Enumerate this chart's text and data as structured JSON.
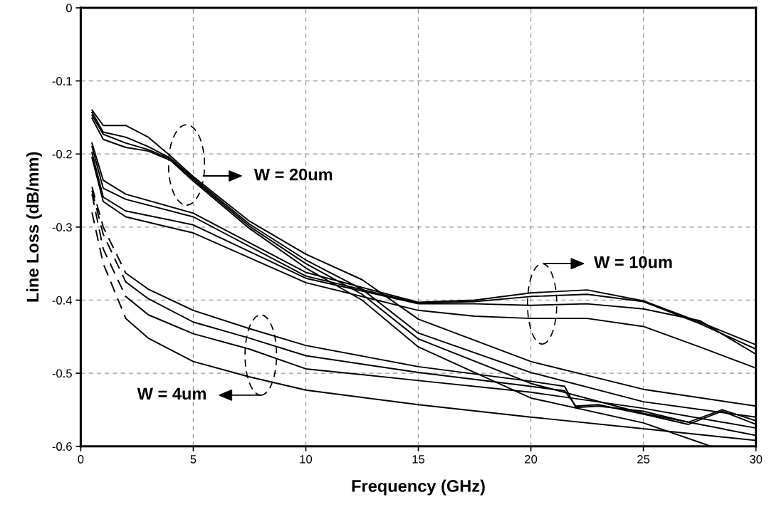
{
  "chart_data": {
    "type": "line",
    "xlabel": "Frequency (GHz)",
    "ylabel": "Line Loss (dB/mm)",
    "xlim": [
      0,
      30
    ],
    "ylim": [
      -0.6,
      0
    ],
    "xticks": [
      0,
      5,
      10,
      15,
      20,
      25,
      30
    ],
    "yticks": [
      0,
      -0.1,
      -0.2,
      -0.3,
      -0.4,
      -0.5,
      -0.6
    ],
    "grid": true,
    "marker": "none",
    "line_style": "solid",
    "annotations": [
      "W = 20um",
      "W = 10um",
      "W = 4um"
    ],
    "series": [
      {
        "color": "#000000",
        "x": [
          0.5,
          1,
          2,
          5,
          10,
          15,
          17.5,
          20,
          22.5,
          25,
          27.5,
          30
        ],
        "values": [
          -0.185,
          -0.236,
          -0.255,
          -0.281,
          -0.362,
          -0.403,
          -0.4,
          -0.39,
          -0.386,
          -0.401,
          -0.43,
          -0.461
        ]
      },
      {
        "color": "#000000",
        "x": [
          0.5,
          1,
          2,
          5,
          10,
          15,
          17.5,
          20,
          22.5,
          25,
          27.5,
          30
        ],
        "values": [
          -0.19,
          -0.247,
          -0.262,
          -0.286,
          -0.367,
          -0.404,
          -0.402,
          -0.395,
          -0.392,
          -0.402,
          -0.432,
          -0.467
        ]
      },
      {
        "color": "#000000",
        "x": [
          0.5,
          1,
          2,
          5,
          10,
          15,
          17.5,
          20,
          22.5,
          25,
          27.5,
          30
        ],
        "values": [
          -0.198,
          -0.259,
          -0.278,
          -0.297,
          -0.37,
          -0.405,
          -0.405,
          -0.407,
          -0.405,
          -0.412,
          -0.428,
          -0.474
        ]
      },
      {
        "color": "#000000",
        "x": [
          0.5,
          1,
          2,
          5,
          10,
          15,
          17.5,
          20,
          22.5,
          25,
          27.5,
          30
        ],
        "values": [
          -0.205,
          -0.265,
          -0.286,
          -0.308,
          -0.376,
          -0.414,
          -0.422,
          -0.425,
          -0.425,
          -0.436,
          -0.464,
          -0.493
        ]
      },
      {
        "color": "#000000",
        "x": [
          0.5,
          1,
          2,
          3,
          4,
          5,
          7.5,
          10,
          12.5,
          15,
          20,
          25,
          30
        ],
        "values": [
          -0.14,
          -0.161,
          -0.161,
          -0.177,
          -0.203,
          -0.231,
          -0.292,
          -0.337,
          -0.372,
          -0.426,
          -0.484,
          -0.522,
          -0.545
        ]
      },
      {
        "color": "#000000",
        "x": [
          0.5,
          1,
          2,
          3,
          4,
          5,
          7.5,
          10,
          12.5,
          15,
          20,
          25,
          30
        ],
        "values": [
          -0.143,
          -0.17,
          -0.177,
          -0.19,
          -0.206,
          -0.233,
          -0.296,
          -0.345,
          -0.385,
          -0.445,
          -0.499,
          -0.539,
          -0.56
        ]
      },
      {
        "color": "#000000",
        "x": [
          0.5,
          1,
          2,
          3,
          4,
          5,
          7.5,
          10,
          12.5,
          15,
          20,
          25,
          30
        ],
        "values": [
          -0.147,
          -0.173,
          -0.185,
          -0.194,
          -0.207,
          -0.235,
          -0.299,
          -0.35,
          -0.392,
          -0.453,
          -0.514,
          -0.555,
          -0.585
        ]
      },
      {
        "color": "#000000",
        "x": [
          0.5,
          1,
          2,
          3,
          4,
          5,
          7.5,
          10,
          12.5,
          15,
          20,
          25,
          28
        ],
        "values": [
          -0.151,
          -0.18,
          -0.191,
          -0.196,
          -0.209,
          -0.237,
          -0.302,
          -0.356,
          -0.4,
          -0.464,
          -0.534,
          -0.568,
          -0.6
        ]
      },
      {
        "color": "#000000",
        "line_style": "dashed",
        "x": [
          0.5,
          1,
          2
        ],
        "values": [
          -0.245,
          -0.3,
          -0.363
        ]
      },
      {
        "color": "#000000",
        "x": [
          2,
          3,
          5,
          7.5,
          10,
          15,
          20,
          21.5,
          22,
          23,
          25,
          27,
          28.5,
          30
        ],
        "values": [
          -0.363,
          -0.385,
          -0.414,
          -0.439,
          -0.462,
          -0.491,
          -0.511,
          -0.518,
          -0.547,
          -0.545,
          -0.552,
          -0.567,
          -0.55,
          -0.565
        ]
      },
      {
        "color": "#000000",
        "line_style": "dashed",
        "x": [
          0.5,
          1,
          2
        ],
        "values": [
          -0.25,
          -0.31,
          -0.375
        ]
      },
      {
        "color": "#000000",
        "x": [
          2,
          3,
          5,
          7.5,
          10,
          15,
          20,
          21.5,
          22,
          23,
          25,
          27,
          28.5,
          30
        ],
        "values": [
          -0.375,
          -0.398,
          -0.43,
          -0.452,
          -0.476,
          -0.499,
          -0.518,
          -0.524,
          -0.545,
          -0.543,
          -0.556,
          -0.57,
          -0.552,
          -0.57
        ]
      },
      {
        "color": "#000000",
        "line_style": "dashed",
        "x": [
          0.5,
          1,
          2
        ],
        "values": [
          -0.255,
          -0.33,
          -0.395
        ]
      },
      {
        "color": "#000000",
        "x": [
          2,
          3,
          5,
          7.5,
          10,
          15,
          20,
          25,
          30
        ],
        "values": [
          -0.395,
          -0.42,
          -0.446,
          -0.467,
          -0.494,
          -0.51,
          -0.526,
          -0.548,
          -0.575
        ]
      },
      {
        "color": "#000000",
        "line_style": "dashed",
        "x": [
          0.5,
          1,
          2
        ],
        "values": [
          -0.28,
          -0.35,
          -0.425
        ]
      },
      {
        "color": "#000000",
        "x": [
          2,
          3,
          5,
          7.5,
          10,
          15,
          20,
          25,
          30
        ],
        "values": [
          -0.425,
          -0.452,
          -0.484,
          -0.505,
          -0.523,
          -0.543,
          -0.56,
          -0.576,
          -0.592
        ]
      }
    ]
  }
}
